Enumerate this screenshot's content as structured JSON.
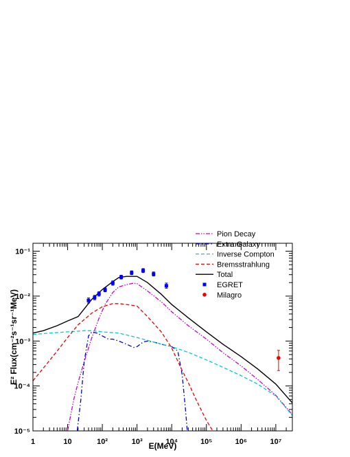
{
  "chart_data": {
    "type": "line",
    "title": "",
    "xlabel": "E(MeV)",
    "ylabel": "E² Flux(cm⁻²s⁻¹sr⁻¹MeV)",
    "x_scale": "log",
    "y_scale": "log",
    "xlim": [
      1,
      30000000
    ],
    "ylim": [
      1e-05,
      0.15
    ],
    "grid": false,
    "legend_position": "top-right",
    "x_ticks": [
      {
        "value": 1,
        "label": "1"
      },
      {
        "value": 10,
        "label": "10"
      },
      {
        "value": 100,
        "label": "10²"
      },
      {
        "value": 1000,
        "label": "10³"
      },
      {
        "value": 10000,
        "label": "10⁴"
      },
      {
        "value": 100000,
        "label": "10⁵"
      },
      {
        "value": 1000000,
        "label": "10⁶"
      },
      {
        "value": 10000000,
        "label": "10⁷"
      }
    ],
    "y_ticks": [
      {
        "value": 1e-05,
        "label": "10⁻⁵"
      },
      {
        "value": 0.0001,
        "label": "10⁻⁴"
      },
      {
        "value": 0.001,
        "label": "10⁻³"
      },
      {
        "value": 0.01,
        "label": "10⁻²"
      },
      {
        "value": 0.1,
        "label": "10⁻¹"
      }
    ],
    "series": [
      {
        "name": "Pion Decay",
        "color": "#cc00cc",
        "style": "dash-dot-dot",
        "points": [
          [
            10,
            1.02e-05
          ],
          [
            15,
            5e-05
          ],
          [
            20,
            0.00012
          ],
          [
            30,
            0.00035
          ],
          [
            50,
            0.0012
          ],
          [
            80,
            0.0032
          ],
          [
            120,
            0.0065
          ],
          [
            200,
            0.012
          ],
          [
            300,
            0.016
          ],
          [
            500,
            0.018
          ],
          [
            800,
            0.0195
          ],
          [
            1000,
            0.019
          ],
          [
            2000,
            0.013
          ],
          [
            5000,
            0.0075
          ],
          [
            10000,
            0.0045
          ],
          [
            30000,
            0.0022
          ],
          [
            100000,
            0.0011
          ],
          [
            300000,
            0.00055
          ],
          [
            1000000,
            0.00028
          ],
          [
            3000000,
            0.00014
          ],
          [
            10000000,
            6.2e-05
          ],
          [
            30000000,
            2.3e-05
          ]
        ]
      },
      {
        "name": "Extra Galaxy",
        "color": "#0000cc",
        "style": "dash-dot",
        "points": [
          [
            19,
            1.02e-05
          ],
          [
            24,
            5e-05
          ],
          [
            30,
            0.00035
          ],
          [
            40,
            0.0013
          ],
          [
            50,
            0.0016
          ],
          [
            70,
            0.0015
          ],
          [
            100,
            0.0013
          ],
          [
            150,
            0.0011
          ],
          [
            200,
            0.0011
          ],
          [
            300,
            0.001
          ],
          [
            500,
            0.00085
          ],
          [
            800,
            0.00072
          ],
          [
            1000,
            0.00075
          ],
          [
            1500,
            0.00095
          ],
          [
            2000,
            0.001
          ],
          [
            3000,
            0.00095
          ],
          [
            5000,
            0.00085
          ],
          [
            10000,
            0.00075
          ],
          [
            15000,
            0.0006
          ],
          [
            20000,
            0.00018
          ],
          [
            25000,
            3e-05
          ],
          [
            28000,
            1.02e-05
          ]
        ]
      },
      {
        "name": "Inverse Compton",
        "color": "#00cccc",
        "style": "dashed",
        "points": [
          [
            1,
            0.0014
          ],
          [
            3,
            0.0015
          ],
          [
            10,
            0.0016
          ],
          [
            30,
            0.0017
          ],
          [
            50,
            0.0017
          ],
          [
            100,
            0.0016
          ],
          [
            300,
            0.0015
          ],
          [
            1000,
            0.0012
          ],
          [
            3000,
            0.00095
          ],
          [
            10000,
            0.00075
          ],
          [
            30000,
            0.00056
          ],
          [
            100000,
            0.00038
          ],
          [
            300000,
            0.00026
          ],
          [
            1000000,
            0.00017
          ],
          [
            3000000,
            0.00011
          ],
          [
            10000000,
            6e-05
          ],
          [
            30000000,
            2.2e-05
          ]
        ]
      },
      {
        "name": "Bremsstrahlung",
        "color": "#ee0000",
        "style": "dashed",
        "points": [
          [
            1,
            0.00013
          ],
          [
            2,
            0.00025
          ],
          [
            5,
            0.0006
          ],
          [
            10,
            0.0012
          ],
          [
            20,
            0.0023
          ],
          [
            50,
            0.0042
          ],
          [
            100,
            0.0058
          ],
          [
            200,
            0.0068
          ],
          [
            300,
            0.0068
          ],
          [
            500,
            0.0065
          ],
          [
            1000,
            0.006
          ],
          [
            2000,
            0.0035
          ],
          [
            5000,
            0.0016
          ],
          [
            10000,
            0.0007
          ],
          [
            20000,
            0.00022
          ],
          [
            30000,
            0.00012
          ],
          [
            50000,
            5e-05
          ],
          [
            100000,
            1.7e-05
          ],
          [
            150000,
            1.02e-05
          ]
        ]
      },
      {
        "name": "Total",
        "color": "#000000",
        "style": "solid",
        "points": [
          [
            1,
            0.0015
          ],
          [
            2,
            0.0017
          ],
          [
            5,
            0.0022
          ],
          [
            10,
            0.0028
          ],
          [
            20,
            0.0035
          ],
          [
            50,
            0.0085
          ],
          [
            100,
            0.014
          ],
          [
            200,
            0.021
          ],
          [
            300,
            0.026
          ],
          [
            500,
            0.0275
          ],
          [
            1000,
            0.0275
          ],
          [
            2000,
            0.02
          ],
          [
            5000,
            0.011
          ],
          [
            10000,
            0.0065
          ],
          [
            30000,
            0.0033
          ],
          [
            100000,
            0.0016
          ],
          [
            300000,
            0.00085
          ],
          [
            1000000,
            0.00045
          ],
          [
            3000000,
            0.00024
          ],
          [
            10000000,
            0.00011
          ],
          [
            30000000,
            4.2e-05
          ]
        ]
      }
    ],
    "scatter": [
      {
        "name": "EGRET",
        "color": "#0000ee",
        "marker": "square",
        "points": [
          {
            "x": 40,
            "y": 0.008,
            "err": [
              0.007,
              0.0091
            ]
          },
          {
            "x": 60,
            "y": 0.0093,
            "err": [
              0.0083,
              0.0104
            ]
          },
          {
            "x": 80,
            "y": 0.0112,
            "err": [
              0.01,
              0.0125
            ]
          },
          {
            "x": 120,
            "y": 0.0138,
            "err": [
              0.0125,
              0.0153
            ]
          },
          {
            "x": 200,
            "y": 0.0195,
            "err": [
              0.0175,
              0.0218
            ]
          },
          {
            "x": 350,
            "y": 0.0265,
            "err": [
              0.024,
              0.0292
            ]
          },
          {
            "x": 700,
            "y": 0.033,
            "err": [
              0.03,
              0.0365
            ]
          },
          {
            "x": 1500,
            "y": 0.037,
            "err": [
              0.0335,
              0.041
            ]
          },
          {
            "x": 3000,
            "y": 0.031,
            "err": [
              0.028,
              0.0345
            ]
          },
          {
            "x": 7000,
            "y": 0.017,
            "err": [
              0.015,
              0.0195
            ]
          }
        ]
      },
      {
        "name": "Milagro",
        "color": "#ee0000",
        "marker": "circle",
        "points": [
          {
            "x": 12000000,
            "y": 0.00042,
            "err": [
              0.00022,
              0.00062
            ]
          }
        ]
      }
    ]
  }
}
